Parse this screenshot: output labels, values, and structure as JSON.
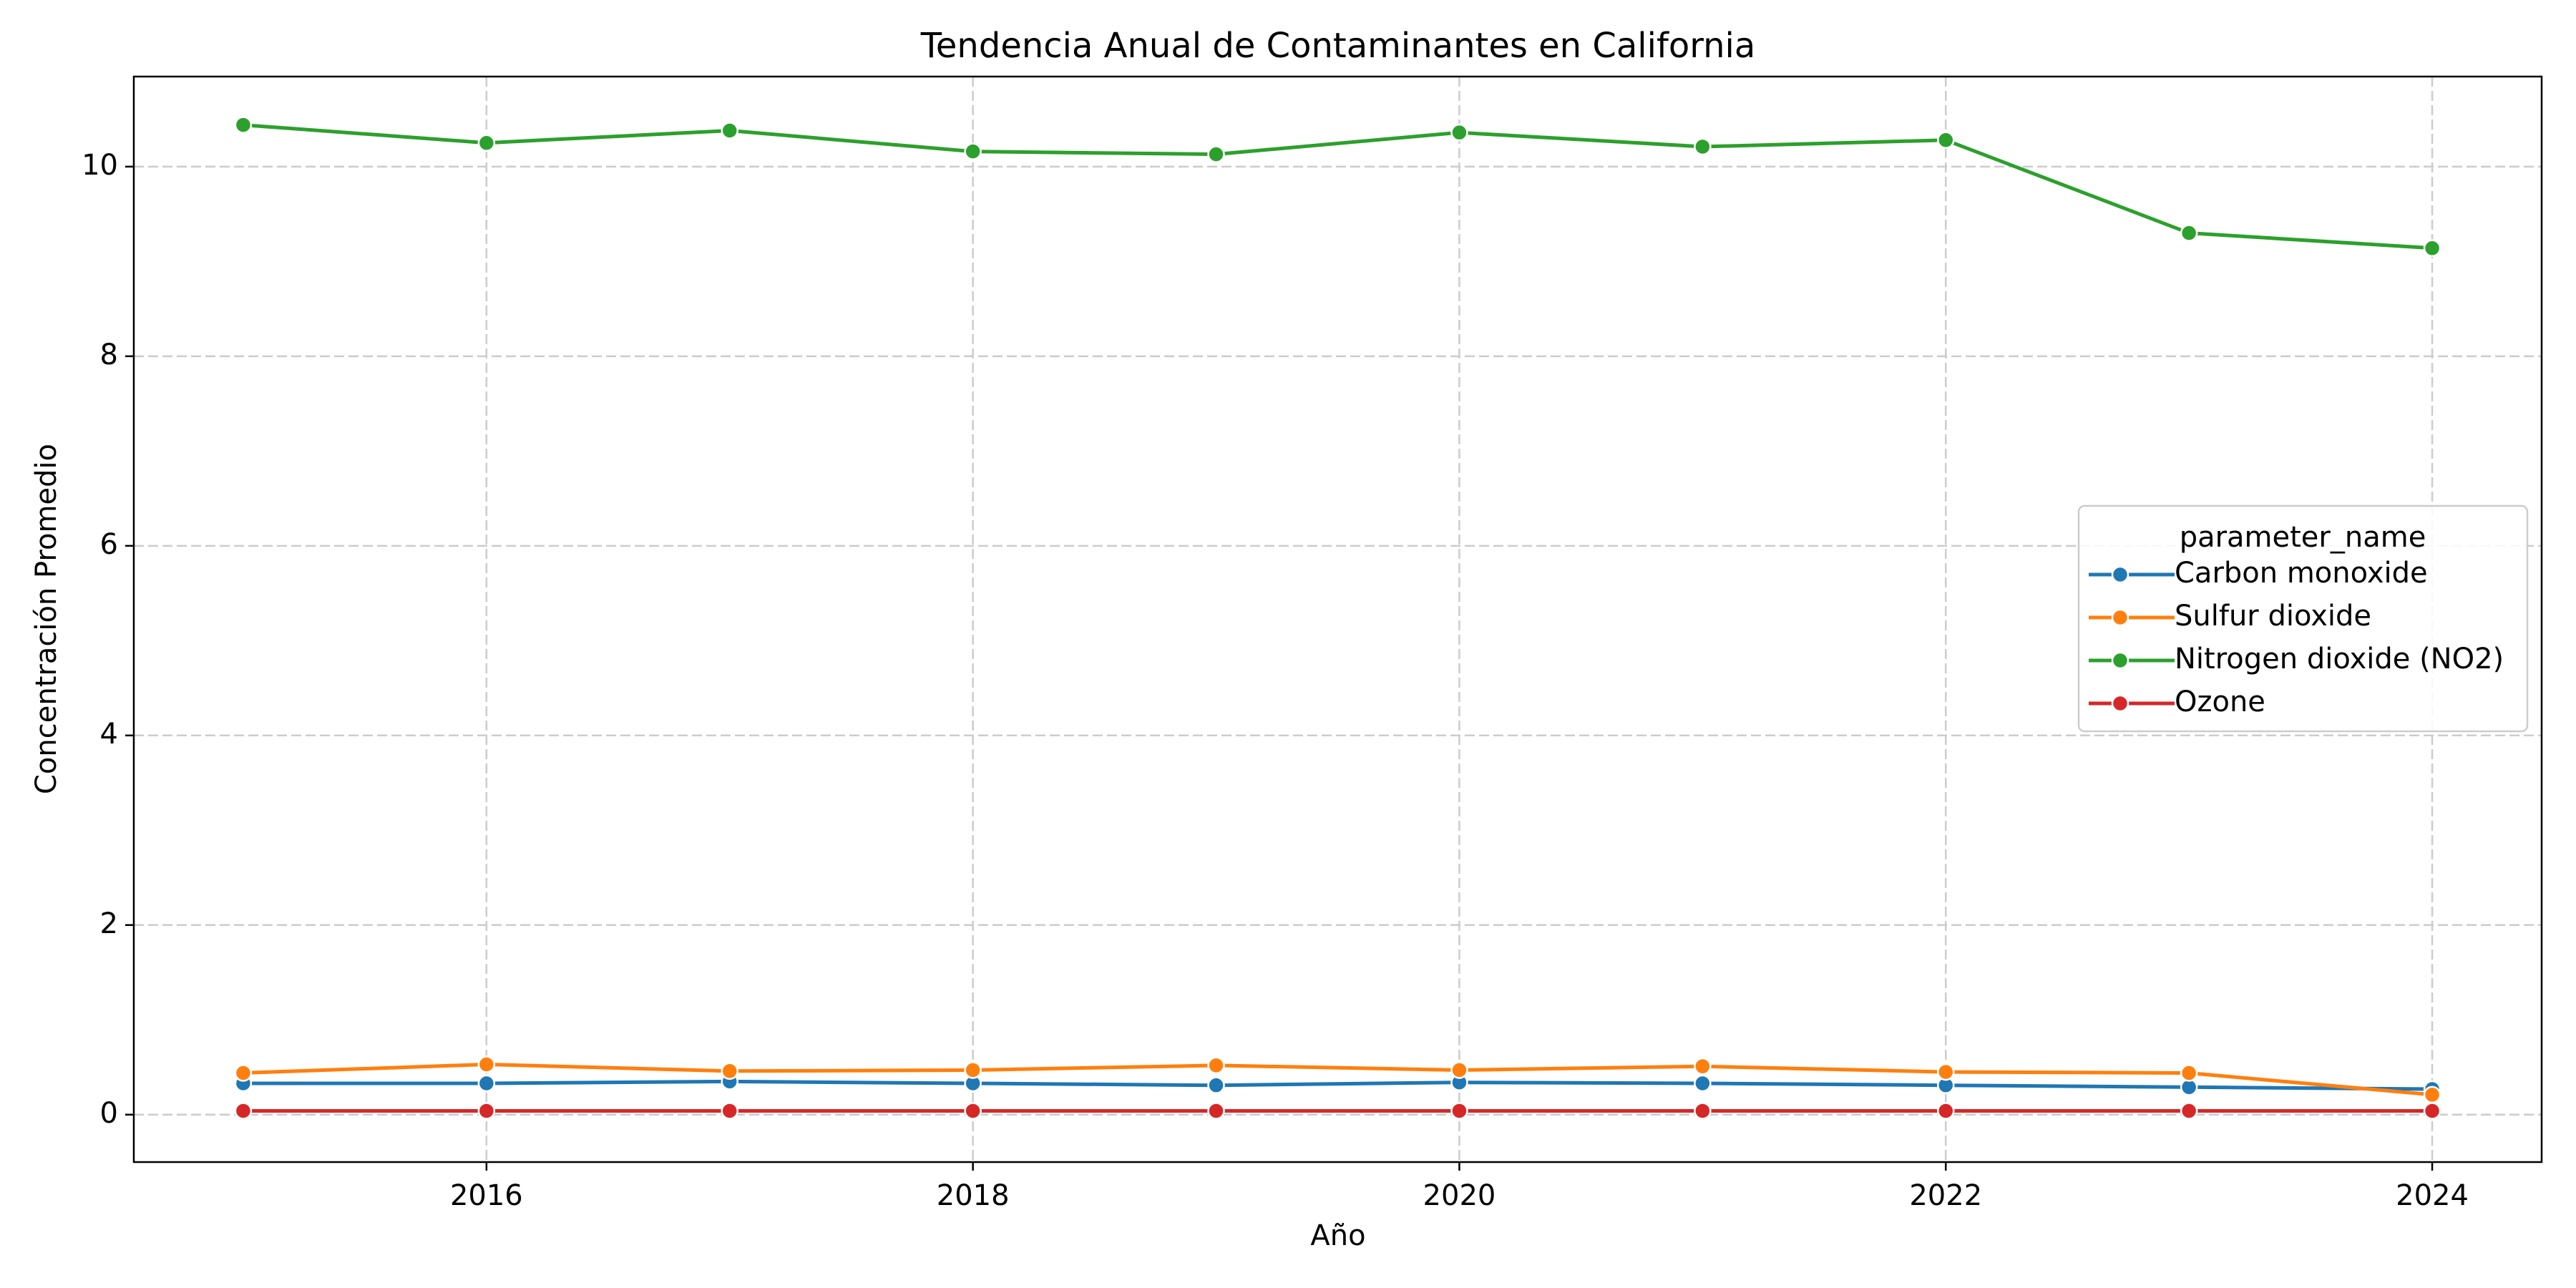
{
  "chart_data": {
    "type": "line",
    "title": "Tendencia Anual de Contaminantes en California",
    "xlabel": "Año",
    "ylabel": "Concentración Promedio",
    "x": [
      2015,
      2016,
      2017,
      2018,
      2019,
      2020,
      2021,
      2022,
      2023,
      2024
    ],
    "xlim": [
      2014.55,
      2024.45
    ],
    "ylim": [
      -0.5,
      10.95
    ],
    "xticks": [
      2016,
      2018,
      2020,
      2022,
      2024
    ],
    "yticks": [
      0,
      2,
      4,
      6,
      8,
      10
    ],
    "grid": true,
    "legend": {
      "title": "parameter_name",
      "position": "center-right"
    },
    "series": [
      {
        "name": "Carbon monoxide",
        "color": "#1f77b4",
        "values": [
          0.33,
          0.33,
          0.35,
          0.33,
          0.31,
          0.34,
          0.33,
          0.31,
          0.29,
          0.27
        ]
      },
      {
        "name": "Sulfur dioxide",
        "color": "#ff7f0e",
        "values": [
          0.44,
          0.53,
          0.46,
          0.47,
          0.52,
          0.47,
          0.51,
          0.45,
          0.44,
          0.21
        ]
      },
      {
        "name": "Nitrogen dioxide (NO2)",
        "color": "#2ca02c",
        "values": [
          10.44,
          10.25,
          10.38,
          10.16,
          10.13,
          10.36,
          10.21,
          10.28,
          9.3,
          9.14
        ]
      },
      {
        "name": "Ozone",
        "color": "#d62728",
        "values": [
          0.04,
          0.04,
          0.04,
          0.04,
          0.04,
          0.04,
          0.04,
          0.04,
          0.04,
          0.04
        ]
      }
    ]
  }
}
